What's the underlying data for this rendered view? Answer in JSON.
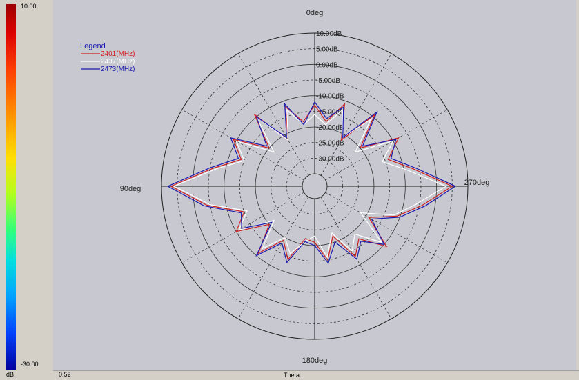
{
  "colorbar": {
    "max_label": "10.00",
    "min_label": "-30.00",
    "unit_label": "dB",
    "colors": [
      "#9a0000",
      "#ff4000",
      "#ffe000",
      "#30ff80",
      "#00a0ff",
      "#00009a"
    ]
  },
  "bottom_bar": {
    "value": "0.52",
    "axis_label": "Theta"
  },
  "chart_data": {
    "type": "polar",
    "angle_labels": {
      "top": "0deg",
      "left": "90deg",
      "right": "270deg",
      "bottom": "180deg"
    },
    "radial_ticks": [
      "10.00dB",
      "5.00dB",
      "0.00dB",
      "-5.00dB",
      "-10.00dB",
      "-15.00dB",
      "-20.00dB",
      "-25.00dB",
      "-30.00dB"
    ],
    "r_range": [
      -35,
      10
    ],
    "legend_title": "Legend",
    "legend_position": "top-left",
    "series": [
      {
        "name": "2401(MHz)",
        "color": "#d02020",
        "angles": [
          0,
          10,
          20,
          30,
          40,
          50,
          60,
          70,
          80,
          90,
          100,
          110,
          120,
          130,
          140,
          150,
          160,
          170,
          180,
          190,
          200,
          210,
          220,
          230,
          240,
          250,
          260,
          270,
          280,
          290,
          300,
          310,
          320,
          330,
          340,
          350
        ],
        "values": [
          -13,
          -18,
          -12,
          -22,
          -9,
          -20,
          -9,
          -14,
          -6,
          7,
          -4,
          -15,
          -10,
          -20,
          -11,
          -19,
          -14,
          -22,
          -21,
          -15,
          -22,
          -13,
          -17,
          -9,
          -19,
          -11,
          -4,
          5,
          -7,
          -14,
          -8,
          -20,
          -9,
          -22,
          -11,
          -18
        ]
      },
      {
        "name": "2437(MHz)",
        "color": "#ffffff",
        "angles": [
          0,
          10,
          20,
          30,
          40,
          50,
          60,
          70,
          80,
          90,
          100,
          110,
          120,
          130,
          140,
          150,
          160,
          170,
          180,
          190,
          200,
          210,
          220,
          230,
          240,
          250,
          260,
          270,
          280,
          290,
          300,
          310,
          320,
          330,
          340,
          350
        ],
        "values": [
          -16,
          -19,
          -13,
          -22,
          -10,
          -22,
          -10,
          -15,
          -7,
          6,
          -5,
          -16,
          -11,
          -22,
          -13,
          -20,
          -16,
          -21,
          -23,
          -16,
          -23,
          -15,
          -19,
          -11,
          -22,
          -12,
          -6,
          3,
          -9,
          -16,
          -10,
          -22,
          -11,
          -21,
          -13,
          -19
        ]
      },
      {
        "name": "2473(MHz)",
        "color": "#1a1ab0",
        "angles": [
          0,
          10,
          20,
          30,
          40,
          50,
          60,
          70,
          80,
          90,
          100,
          110,
          120,
          130,
          140,
          150,
          160,
          170,
          180,
          190,
          200,
          210,
          220,
          230,
          240,
          250,
          260,
          270,
          280,
          290,
          300,
          310,
          320,
          330,
          340,
          350
        ],
        "values": [
          -12,
          -19,
          -11,
          -21,
          -10,
          -19,
          -8,
          -13,
          -5,
          8,
          -3,
          -14,
          -12,
          -21,
          -10,
          -18,
          -13,
          -21,
          -20,
          -14,
          -20,
          -12,
          -16,
          -10,
          -18,
          -10,
          -3,
          6,
          -6,
          -13,
          -9,
          -19,
          -8,
          -21,
          -12,
          -17
        ]
      }
    ]
  }
}
